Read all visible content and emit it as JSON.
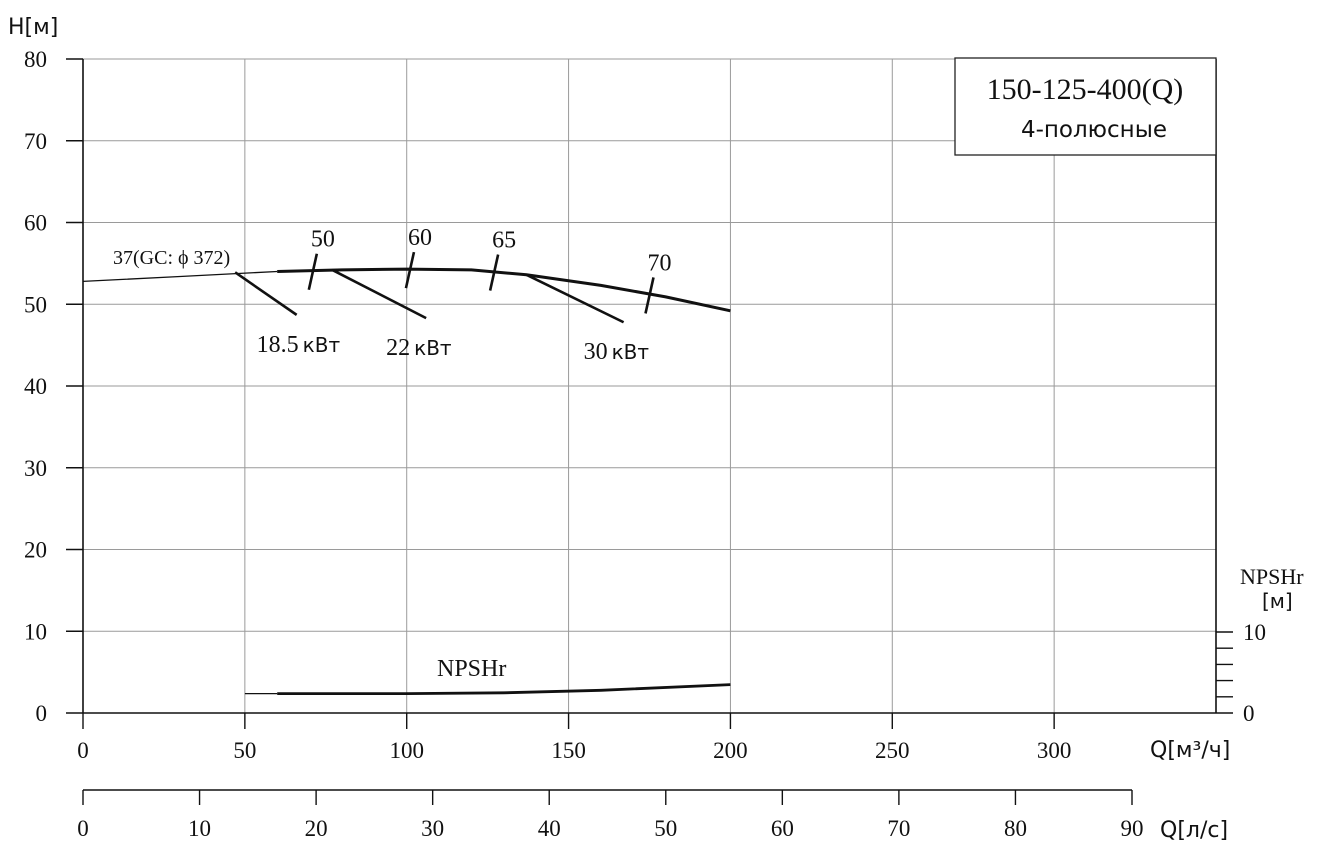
{
  "chart_data": {
    "type": "line",
    "model_title": "150-125-400(Q)",
    "model_subtitle": "4-полюсные",
    "y_axis": {
      "label": "H[м]",
      "ticks": [
        0,
        10,
        20,
        30,
        40,
        50,
        60,
        70,
        80
      ],
      "range": [
        0,
        80
      ]
    },
    "x_axis": {
      "label": "Q[м³/ч]",
      "ticks": [
        0,
        50,
        100,
        150,
        200,
        250,
        300
      ],
      "range": [
        0,
        350
      ]
    },
    "x2_axis": {
      "label": "Q[л/с]",
      "ticks": [
        0,
        10,
        20,
        30,
        40,
        50,
        60,
        70,
        80,
        90
      ],
      "range": [
        0,
        90
      ]
    },
    "y2_axis": {
      "label_line1": "NPSHr",
      "label_line2": "[м]",
      "ticks": [
        0,
        10
      ],
      "range": [
        0,
        10
      ]
    },
    "grid": true,
    "series": [
      {
        "name": "37(GC: ϕ 372)",
        "points": [
          [
            0,
            52.8
          ],
          [
            30,
            53.4
          ],
          [
            60,
            54.0
          ],
          [
            80,
            54.2
          ],
          [
            100,
            54.3
          ],
          [
            120,
            54.2
          ],
          [
            137,
            53.6
          ],
          [
            160,
            52.3
          ],
          [
            180,
            50.9
          ],
          [
            200,
            49.2
          ]
        ]
      },
      {
        "name": "NPSHr",
        "points": [
          [
            50,
            2.4
          ],
          [
            60,
            2.4
          ],
          [
            100,
            2.4
          ],
          [
            130,
            2.5
          ],
          [
            160,
            2.8
          ],
          [
            200,
            3.5
          ]
        ]
      }
    ],
    "efficiency_marks": [
      {
        "label": "50",
        "x": 71,
        "y": 54.1
      },
      {
        "label": "60",
        "x": 101,
        "y": 54.3
      },
      {
        "label": "65",
        "x": 127,
        "y": 54.0
      },
      {
        "label": "70",
        "x": 175,
        "y": 51.2
      }
    ],
    "power_labels": [
      {
        "label": "18.5",
        "unit": "кВт",
        "from": [
          47,
          53.9
        ],
        "to": [
          66,
          48.7
        ]
      },
      {
        "label": "22",
        "unit": "кВт",
        "from": [
          77,
          54.2
        ],
        "to": [
          106,
          48.3
        ]
      },
      {
        "label": "30",
        "unit": "кВт",
        "from": [
          137,
          53.6
        ],
        "to": [
          167,
          47.8
        ]
      }
    ]
  }
}
